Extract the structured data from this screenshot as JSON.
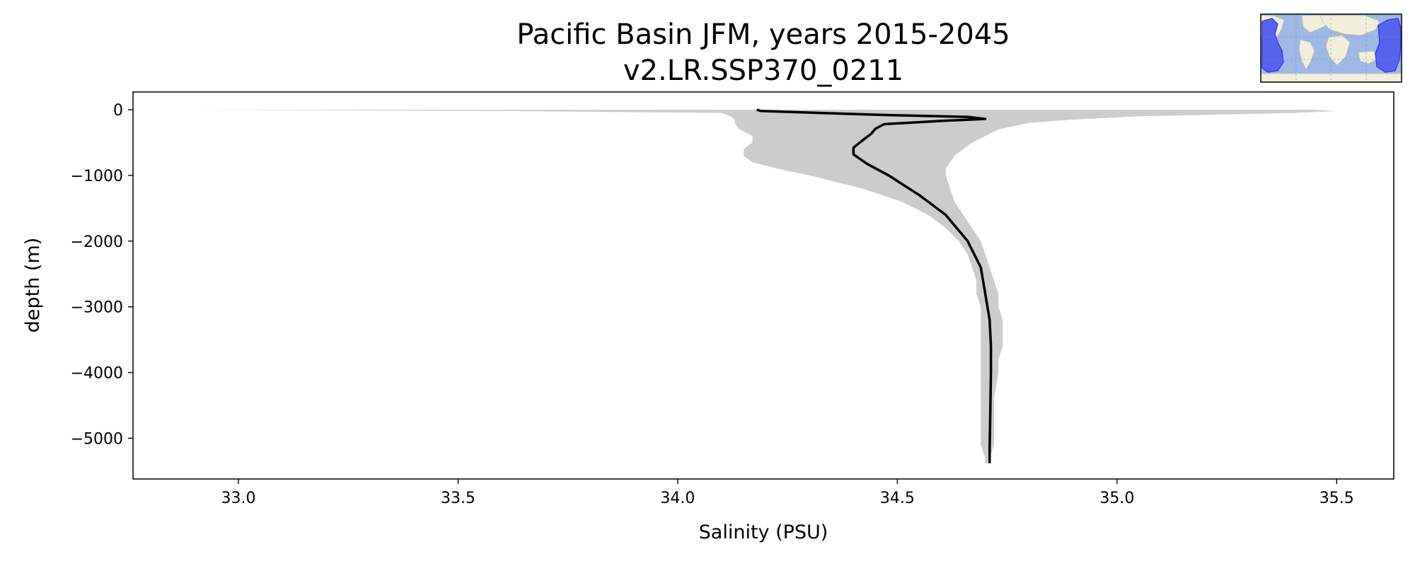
{
  "chart_data": {
    "type": "line",
    "title": "Pacific Basin JFM, years 2015-2045",
    "subtitle": "v2.LR.SSP370_0211",
    "xlabel": "Salinity (PSU)",
    "ylabel": "depth (m)",
    "xlim": [
      32.76,
      35.63
    ],
    "ylim": [
      -5620,
      270
    ],
    "xticks": [
      33.0,
      33.5,
      34.0,
      34.5,
      35.0,
      35.5
    ],
    "xtick_labels": [
      "33.0",
      "33.5",
      "34.0",
      "34.5",
      "35.0",
      "35.5"
    ],
    "yticks": [
      0,
      -1000,
      -2000,
      -3000,
      -4000,
      -5000
    ],
    "ytick_labels": [
      "0",
      "−1000",
      "−2000",
      "−3000",
      "−4000",
      "−5000"
    ],
    "grid": false,
    "series": [
      {
        "role": "mean",
        "color": "#000000",
        "depth": [
          0,
          -20,
          -50,
          -80,
          -110,
          -140,
          -170,
          -220,
          -290,
          -370,
          -470,
          -580,
          -680,
          -820,
          -1000,
          -1300,
          -1600,
          -2000,
          -2400,
          -2800,
          -3200,
          -3600,
          -4000,
          -4400,
          -4800,
          -5150,
          -5380
        ],
        "salinity": [
          34.18,
          34.19,
          34.33,
          34.47,
          34.66,
          34.7,
          34.6,
          34.47,
          34.45,
          34.44,
          34.42,
          34.4,
          34.4,
          34.43,
          34.48,
          34.55,
          34.61,
          34.66,
          34.69,
          34.7,
          34.71,
          34.713,
          34.713,
          34.712,
          34.711,
          34.71,
          34.71
        ]
      },
      {
        "role": "range",
        "color": "#cccccc",
        "depth": [
          0,
          -20,
          -50,
          -100,
          -150,
          -200,
          -300,
          -400,
          -500,
          -600,
          -700,
          -800,
          -900,
          -1000,
          -1200,
          -1400,
          -1600,
          -1800,
          -2000,
          -2200,
          -2400,
          -2600,
          -2800,
          -3000,
          -3200,
          -3400,
          -3600,
          -3800,
          -4000,
          -4400,
          -4800,
          -5100,
          -5300,
          -5380
        ],
        "min": [
          32.9,
          33.6,
          34.1,
          34.12,
          34.13,
          34.13,
          34.14,
          34.17,
          34.17,
          34.15,
          34.15,
          34.17,
          34.23,
          34.3,
          34.42,
          34.51,
          34.57,
          34.61,
          34.64,
          34.66,
          34.67,
          34.68,
          34.68,
          34.69,
          34.69,
          34.69,
          34.69,
          34.69,
          34.69,
          34.69,
          34.69,
          34.69,
          34.7,
          34.7
        ],
        "max": [
          35.45,
          35.5,
          35.4,
          35.05,
          34.9,
          34.8,
          34.73,
          34.7,
          34.67,
          34.65,
          34.63,
          34.62,
          34.61,
          34.61,
          34.62,
          34.63,
          34.65,
          34.67,
          34.69,
          34.7,
          34.71,
          34.72,
          34.73,
          34.73,
          34.74,
          34.74,
          34.74,
          34.73,
          34.73,
          34.72,
          34.72,
          34.72,
          34.71,
          34.71
        ]
      }
    ]
  },
  "inset_map": {
    "land_color": "#f0efdc",
    "ocean_color": "#9fb8e6",
    "basin_color": "#5563ee",
    "outline_color": "#3a3ae0"
  }
}
